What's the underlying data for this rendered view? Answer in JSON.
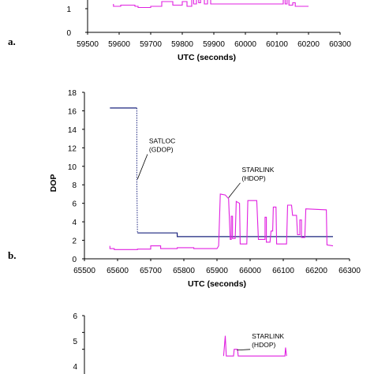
{
  "chart_data": [
    {
      "type": "line",
      "panel_label": "a.",
      "xlabel": "UTC (seconds)",
      "ylabel": "",
      "xlim": [
        59500,
        60300
      ],
      "ylim": [
        0,
        2
      ],
      "x_ticks": [
        "59500",
        "59600",
        "59700",
        "59800",
        "59900",
        "60000",
        "60100",
        "60200",
        "60300"
      ],
      "y_ticks": [
        "0",
        "1"
      ],
      "grid": false,
      "series": [
        {
          "color": "#e020e0",
          "points": [
            [
              59582,
              1.2
            ],
            [
              59582,
              1.1
            ],
            [
              59605,
              1.1
            ],
            [
              59605,
              1.15
            ],
            [
              59650,
              1.15
            ],
            [
              59650,
              1.1
            ],
            [
              59660,
              1.1
            ],
            [
              59660,
              1.05
            ],
            [
              59700,
              1.05
            ],
            [
              59700,
              1.1
            ],
            [
              59735,
              1.1
            ],
            [
              59735,
              1.3
            ],
            [
              59770,
              1.3
            ],
            [
              59770,
              1.15
            ],
            [
              59800,
              1.15
            ],
            [
              59800,
              1.3
            ],
            [
              59815,
              1.3
            ],
            [
              59815,
              1.1
            ],
            [
              59830,
              1.1
            ],
            [
              59830,
              1.6
            ],
            [
              59836,
              1.6
            ],
            [
              59836,
              1.2
            ],
            [
              59845,
              1.2
            ],
            [
              59845,
              1.5
            ],
            [
              59852,
              1.5
            ],
            [
              59852,
              1.25
            ],
            [
              59858,
              1.25
            ],
            [
              59858,
              1.45
            ],
            [
              59870,
              1.45
            ],
            [
              59870,
              1.2
            ],
            [
              59880,
              1.2
            ],
            [
              59880,
              1.5
            ],
            [
              59890,
              1.5
            ],
            [
              59890,
              1.2
            ],
            [
              59900,
              1.2
            ],
            [
              60120,
              1.2
            ],
            [
              60120,
              1.55
            ],
            [
              60126,
              1.55
            ],
            [
              60126,
              1.2
            ],
            [
              60132,
              1.2
            ],
            [
              60132,
              1.4
            ],
            [
              60138,
              1.4
            ],
            [
              60138,
              1.15
            ],
            [
              60150,
              1.15
            ],
            [
              60150,
              1.25
            ],
            [
              60158,
              1.25
            ],
            [
              60158,
              1.1
            ],
            [
              60200,
              1.1
            ]
          ]
        }
      ]
    },
    {
      "type": "line",
      "panel_label": "b.",
      "xlabel": "UTC (seconds)",
      "ylabel": "DOP",
      "xlim": [
        65500,
        66300
      ],
      "ylim": [
        0,
        18
      ],
      "x_ticks": [
        "65500",
        "65600",
        "65700",
        "65800",
        "65900",
        "66000",
        "66100",
        "66200",
        "66300"
      ],
      "y_ticks": [
        "0",
        "2",
        "4",
        "6",
        "8",
        "10",
        "12",
        "14",
        "16",
        "18"
      ],
      "grid": false,
      "annotations": [
        {
          "lines": [
            "SATLOC",
            "(GDOP)"
          ],
          "at": [
            65660,
            8.6
          ],
          "text_at": [
            65695,
            12.5
          ]
        },
        {
          "lines": [
            "STARLINK",
            "(HDOP)"
          ],
          "at": [
            65935,
            6.6
          ],
          "text_at": [
            65975,
            9.4
          ]
        }
      ],
      "series": [
        {
          "name": "SATLOC (GDOP)",
          "color": "#1a237e",
          "dashed_from_x": 65660,
          "points": [
            [
              65577,
              16.3
            ],
            [
              65658,
              16.3
            ],
            [
              65658,
              8.6
            ],
            [
              65660,
              2.8
            ],
            [
              65780,
              2.8
            ],
            [
              65780,
              2.4
            ],
            [
              66250,
              2.4
            ]
          ]
        },
        {
          "name": "STARLINK (HDOP)",
          "color": "#e020e0",
          "points": [
            [
              65577,
              1.4
            ],
            [
              65577,
              1.1
            ],
            [
              65590,
              1.1
            ],
            [
              65590,
              1.0
            ],
            [
              65660,
              1.0
            ],
            [
              65660,
              1.05
            ],
            [
              65700,
              1.05
            ],
            [
              65700,
              1.4
            ],
            [
              65730,
              1.4
            ],
            [
              65730,
              1.1
            ],
            [
              65780,
              1.1
            ],
            [
              65780,
              1.2
            ],
            [
              65830,
              1.2
            ],
            [
              65830,
              1.1
            ],
            [
              65900,
              1.1
            ],
            [
              65905,
              1.4
            ],
            [
              65910,
              7.0
            ],
            [
              65925,
              6.9
            ],
            [
              65935,
              6.5
            ],
            [
              65940,
              2.1
            ],
            [
              65943,
              2.1
            ],
            [
              65943,
              4.6
            ],
            [
              65947,
              4.6
            ],
            [
              65947,
              2.2
            ],
            [
              65955,
              2.2
            ],
            [
              65958,
              6.2
            ],
            [
              65968,
              6.0
            ],
            [
              65970,
              1.6
            ],
            [
              65990,
              1.6
            ],
            [
              65993,
              6.3
            ],
            [
              66020,
              6.3
            ],
            [
              66025,
              2.1
            ],
            [
              66045,
              2.1
            ],
            [
              66045,
              4.5
            ],
            [
              66049,
              4.5
            ],
            [
              66049,
              1.8
            ],
            [
              66060,
              1.8
            ],
            [
              66063,
              3.0
            ],
            [
              66068,
              3.0
            ],
            [
              66070,
              5.6
            ],
            [
              66078,
              5.6
            ],
            [
              66080,
              1.6
            ],
            [
              66110,
              1.6
            ],
            [
              66113,
              5.8
            ],
            [
              66125,
              5.8
            ],
            [
              66128,
              4.7
            ],
            [
              66140,
              4.7
            ],
            [
              66143,
              2.6
            ],
            [
              66150,
              2.6
            ],
            [
              66150,
              4.2
            ],
            [
              66155,
              4.2
            ],
            [
              66155,
              2.3
            ],
            [
              66165,
              2.3
            ],
            [
              66168,
              5.4
            ],
            [
              66230,
              5.3
            ],
            [
              66232,
              1.5
            ],
            [
              66250,
              1.4
            ]
          ]
        }
      ]
    },
    {
      "type": "line",
      "panel_label": "",
      "xlabel": "",
      "ylabel": "",
      "xlim": [
        65500,
        66300
      ],
      "ylim": [
        0,
        6
      ],
      "x_ticks": [],
      "y_ticks": [
        "4",
        "5",
        "6"
      ],
      "grid": false,
      "annotations": [
        {
          "lines": [
            "STARLINK",
            "(HDOP)"
          ],
          "at": [
            65960,
            3.95
          ],
          "text_at": [
            66005,
            4.65
          ]
        }
      ],
      "series": [
        {
          "name": "STARLINK (HDOP)",
          "color": "#e020e0",
          "points": [
            [
              65920,
              3.6
            ],
            [
              65925,
              4.8
            ],
            [
              65928,
              3.6
            ],
            [
              65950,
              3.6
            ],
            [
              65952,
              4.0
            ],
            [
              65962,
              4.0
            ],
            [
              65964,
              3.6
            ],
            [
              66105,
              3.6
            ],
            [
              66107,
              4.1
            ],
            [
              66110,
              3.6
            ]
          ]
        }
      ]
    }
  ]
}
